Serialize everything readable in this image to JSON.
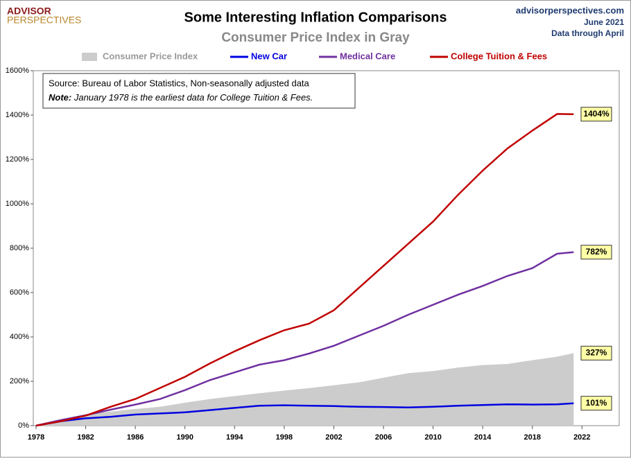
{
  "logo": {
    "line1": "ADVISOR",
    "line2": "PERSPECTIVES"
  },
  "source_info": {
    "site": "advisorperspectives.com",
    "date": "June 2021",
    "coverage": "Data through April"
  },
  "chart_data": {
    "type": "line",
    "title": "Some Interesting Inflation Comparisons",
    "subtitle": "Consumer Price Index in Gray",
    "note": {
      "source": "Source: Bureau of Labor Statistics, Non-seasonally adjusted data",
      "note_label": "Note:",
      "note_text": "January 1978 is the earliest data for College Tuition & Fees."
    },
    "x": [
      1978,
      1980,
      1982,
      1984,
      1986,
      1988,
      1990,
      1992,
      1994,
      1996,
      1998,
      2000,
      2002,
      2004,
      2006,
      2008,
      2010,
      2012,
      2014,
      2016,
      2018,
      2020,
      2021.33
    ],
    "series": [
      {
        "name": "Consumer Price Index",
        "color": "#cccccc",
        "style": "area",
        "values": [
          0,
          24,
          50,
          63,
          75,
          85,
          103,
          120,
          133,
          146,
          158,
          169,
          182,
          195,
          216,
          237,
          246,
          262,
          273,
          278,
          295,
          311,
          327
        ],
        "value_labels": [
          null,
          null,
          null,
          null,
          null,
          null,
          null,
          null,
          null,
          null,
          null,
          null,
          null,
          null,
          null,
          null,
          null,
          null,
          null,
          null,
          null,
          null,
          "327%"
        ]
      },
      {
        "name": "New Car",
        "color": "#0000e0",
        "style": "line",
        "values": [
          0,
          20,
          33,
          40,
          50,
          55,
          60,
          70,
          80,
          90,
          92,
          90,
          88,
          85,
          84,
          82,
          85,
          90,
          93,
          96,
          95,
          96,
          101
        ],
        "value_labels": [
          null,
          null,
          null,
          null,
          null,
          null,
          null,
          null,
          null,
          null,
          null,
          null,
          null,
          null,
          null,
          null,
          null,
          null,
          null,
          null,
          null,
          null,
          "101%"
        ]
      },
      {
        "name": "Medical Care",
        "color": "#7030a0",
        "style": "line",
        "values": [
          0,
          25,
          47,
          72,
          95,
          120,
          160,
          205,
          240,
          275,
          295,
          325,
          360,
          405,
          450,
          500,
          545,
          590,
          630,
          675,
          710,
          775,
          782
        ],
        "value_labels": [
          null,
          null,
          null,
          null,
          null,
          null,
          null,
          null,
          null,
          null,
          null,
          null,
          null,
          null,
          null,
          null,
          null,
          null,
          null,
          null,
          null,
          null,
          "782%"
        ]
      },
      {
        "name": "College Tuition & Fees",
        "color": "#c00000",
        "style": "line",
        "values": [
          0,
          20,
          45,
          85,
          120,
          170,
          220,
          280,
          335,
          385,
          430,
          460,
          520,
          620,
          720,
          820,
          920,
          1040,
          1150,
          1250,
          1330,
          1405,
          1404
        ],
        "value_labels": [
          null,
          null,
          null,
          null,
          null,
          null,
          null,
          null,
          null,
          null,
          null,
          null,
          null,
          null,
          null,
          null,
          null,
          null,
          null,
          null,
          null,
          null,
          "1404%"
        ]
      }
    ],
    "xlim": [
      1978,
      2025
    ],
    "xticks": [
      1978,
      1982,
      1986,
      1990,
      1994,
      1998,
      2002,
      2006,
      2010,
      2014,
      2018,
      2022
    ],
    "ylim": [
      0,
      1600
    ],
    "yticks": [
      {
        "value": 0,
        "label": "0%"
      },
      {
        "value": 200,
        "label": "200%"
      },
      {
        "value": 400,
        "label": "400%"
      },
      {
        "value": 600,
        "label": "600%"
      },
      {
        "value": 800,
        "label": "800%"
      },
      {
        "value": 1000,
        "label": "1000%"
      },
      {
        "value": 1200,
        "label": "1200%"
      },
      {
        "value": 1400,
        "label": "1400%"
      },
      {
        "value": 1600,
        "label": "1600%"
      }
    ],
    "grid": false
  }
}
